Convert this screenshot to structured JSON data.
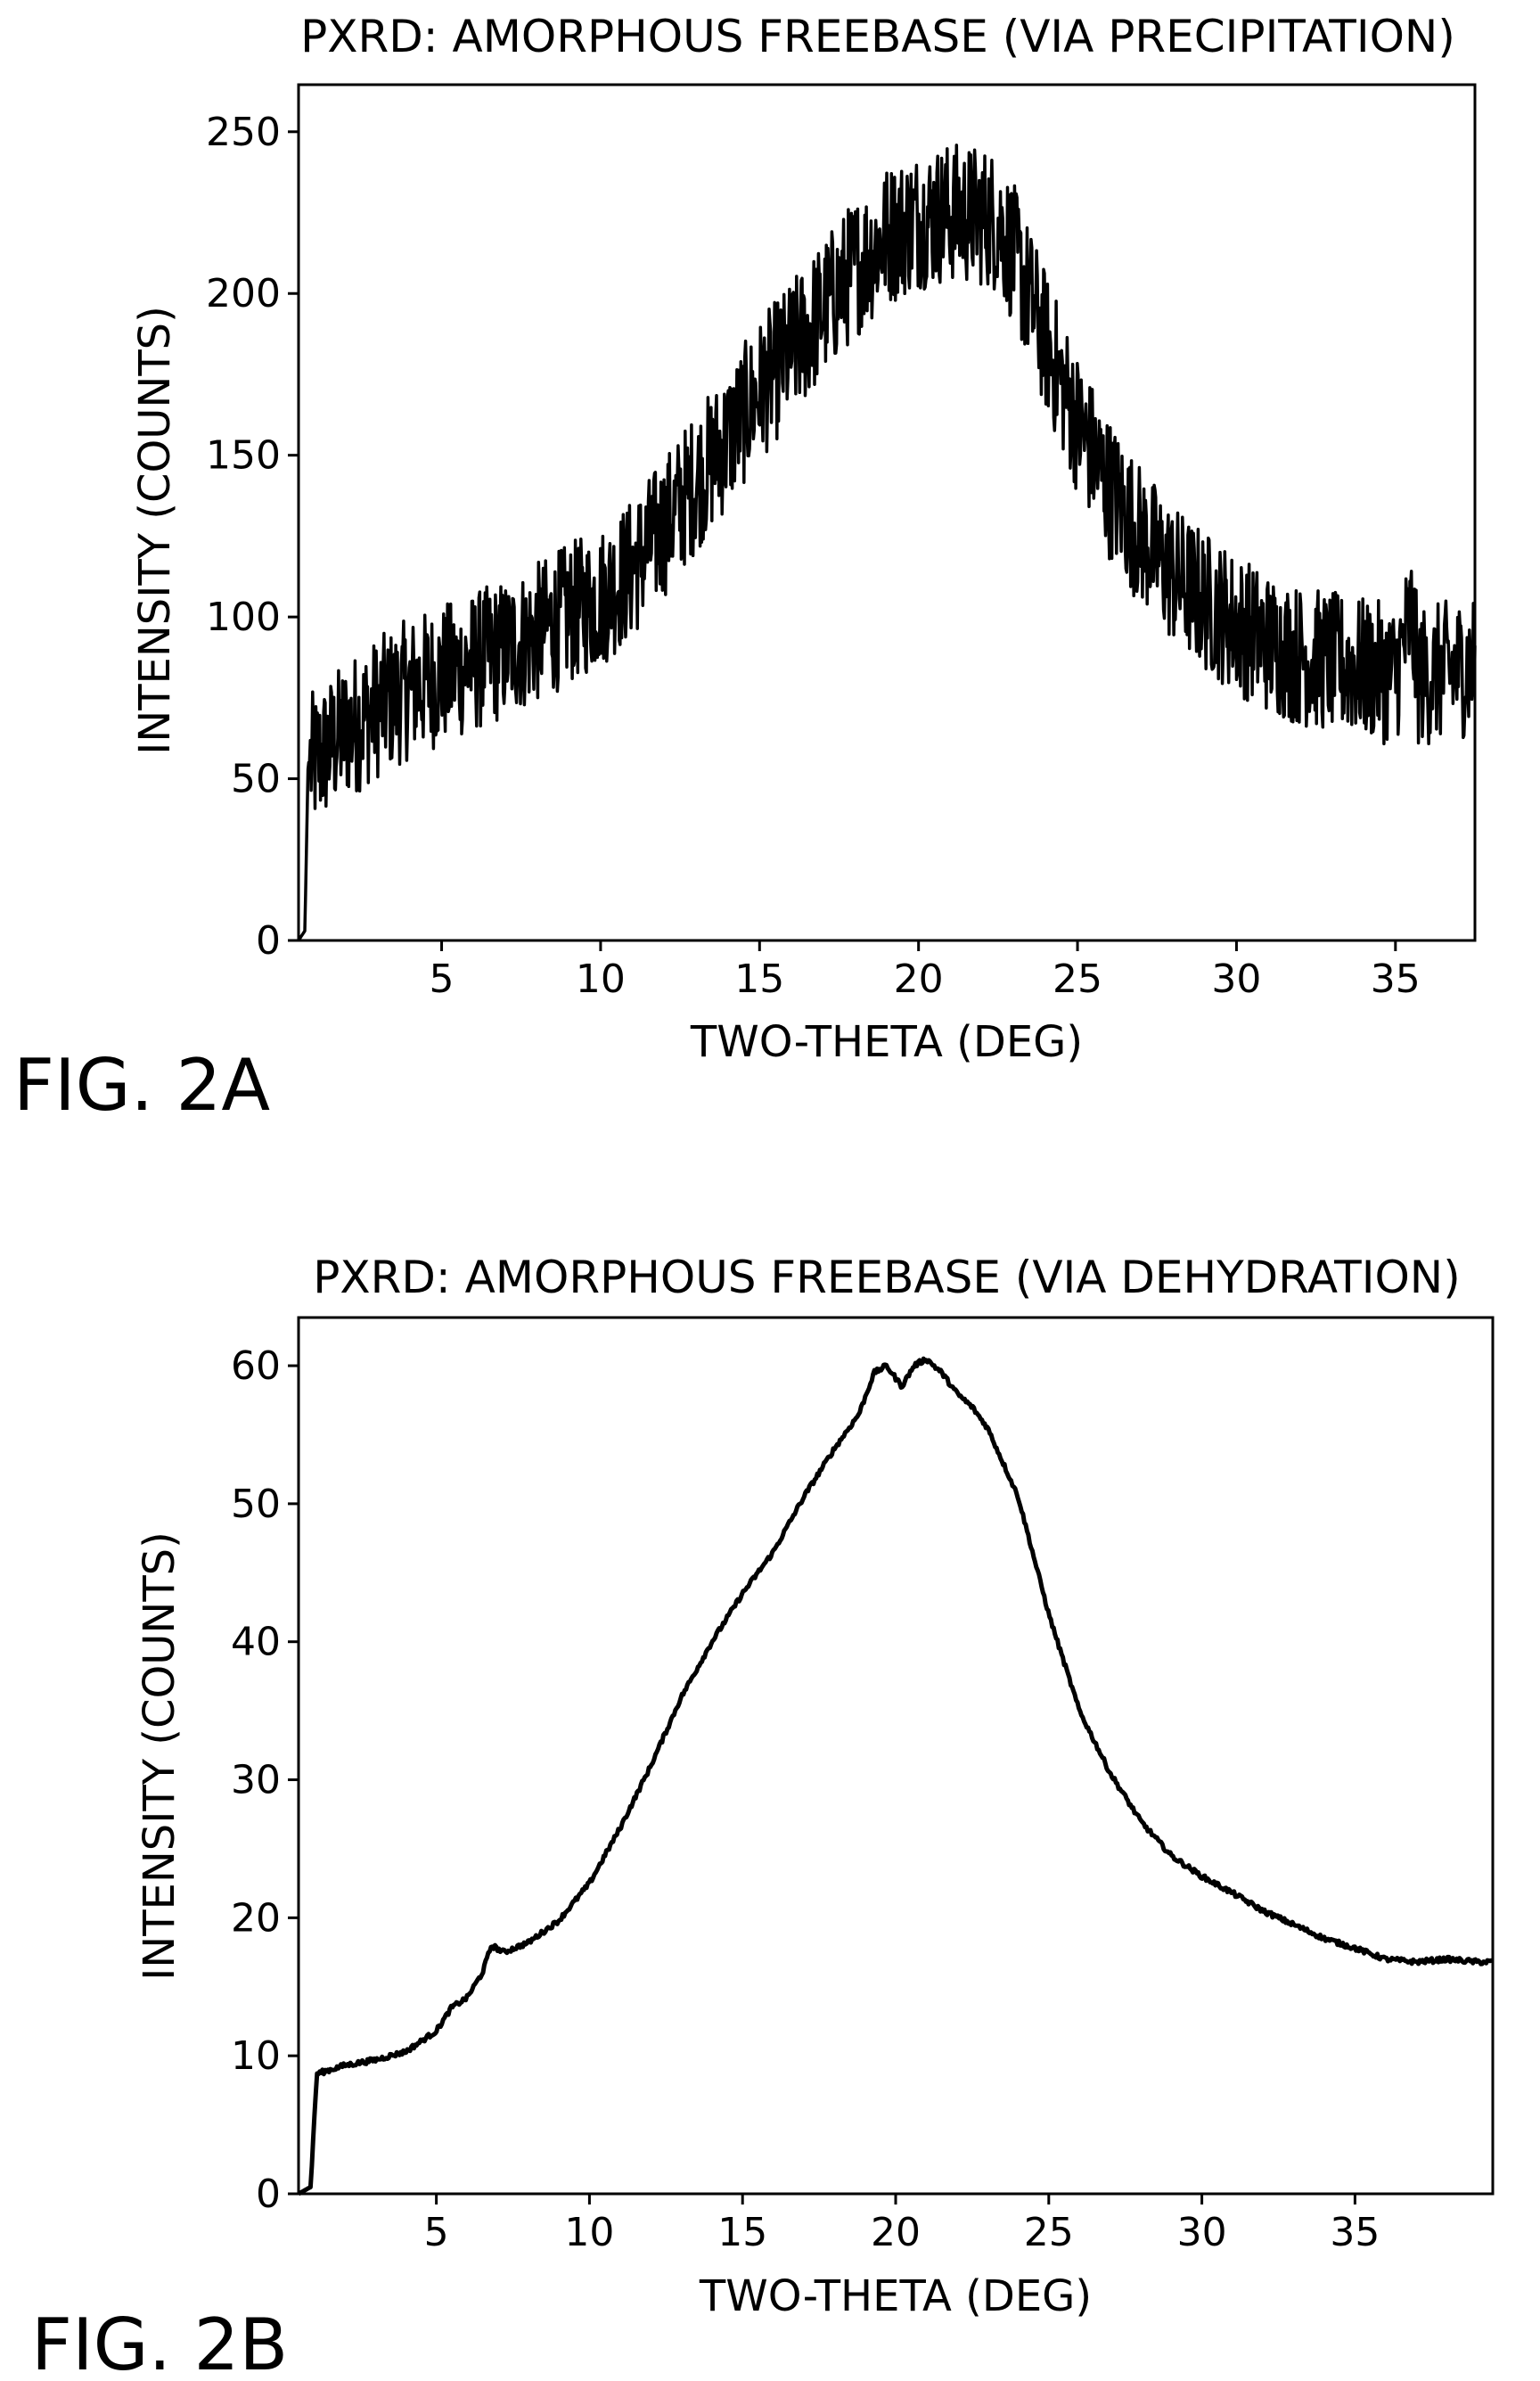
{
  "figures": [
    {
      "fig_label": "FIG. 2A",
      "chart_data": {
        "type": "line",
        "title": "PXRD: AMORPHOUS FREEBASE (VIA PRECIPITATION)",
        "xlabel": "TWO-THETA (DEG)",
        "ylabel": "INTENSITY (COUNTS)",
        "xlim": [
          0.5,
          37.5
        ],
        "ylim": [
          0,
          250
        ],
        "xticks": [
          5,
          10,
          15,
          20,
          25,
          30,
          35
        ],
        "yticks": [
          0,
          50,
          100,
          150,
          200,
          250
        ],
        "grid": false,
        "noisy": true,
        "series": [
          {
            "x": [
              0.5,
              0.7,
              0.8,
              1,
              2,
              3,
              4,
              5,
              6,
              7,
              8,
              9,
              10,
              11,
              12,
              13,
              14,
              15,
              16,
              17,
              18,
              19,
              20,
              21,
              22,
              22.5,
              23,
              24,
              25,
              26,
              27,
              28,
              29,
              30,
              31,
              32,
              33,
              34,
              35,
              35.5,
              35.7,
              36,
              37,
              37.5
            ],
            "values": [
              0,
              3,
              55,
              55,
              65,
              72,
              78,
              82,
              86,
              90,
              95,
              101,
              106,
              115,
              128,
              142,
              155,
              170,
              182,
              195,
              208,
              218,
              223,
              225,
              224,
              222,
              212,
              185,
              160,
              140,
              125,
              113,
              105,
              98,
              92,
              88,
              86,
              84,
              82,
              100,
              82,
              82,
              84,
              86
            ]
          }
        ]
      }
    },
    {
      "fig_label": "FIG. 2B",
      "chart_data": {
        "type": "line",
        "title": "PXRD: AMORPHOUS FREEBASE (VIA DEHYDRATION)",
        "xlabel": "TWO-THETA (DEG)",
        "ylabel": "INTENSITY (COUNTS)",
        "xlim": [
          0.5,
          39.5
        ],
        "ylim": [
          0,
          60
        ],
        "xticks": [
          5,
          10,
          15,
          20,
          25,
          30,
          35
        ],
        "yticks": [
          0,
          10,
          20,
          30,
          40,
          50,
          60
        ],
        "grid": false,
        "noisy": false,
        "series": [
          {
            "x": [
              0.5,
              0.9,
              1.0,
              1.1,
              2,
              3,
              4,
              5,
              5.5,
              6,
              6.5,
              6.8,
              7.2,
              8,
              9,
              10,
              11,
              12,
              13,
              14,
              15,
              16,
              17,
              18,
              18.8,
              19.3,
              19.7,
              20.2,
              20.6,
              21,
              21.5,
              22,
              22.5,
              23,
              24,
              25,
              26,
              27,
              28,
              29,
              30,
              31,
              32,
              33,
              34,
              35,
              36,
              37,
              38,
              39,
              39.5
            ],
            "values": [
              0,
              0.5,
              5,
              8.7,
              9.3,
              9.7,
              10.3,
              11.8,
              13.5,
              14.2,
              16,
              18,
              17.5,
              18.2,
              19.8,
              22.5,
              26.5,
              31,
              36,
              40,
              43.5,
              46.5,
              50.5,
              54,
              56.5,
              59.5,
              60,
              58.5,
              60,
              60.5,
              59.5,
              58,
              57,
              55.5,
              50.5,
              42,
              35,
              30.5,
              27,
              24.5,
              23,
              21.8,
              20.5,
              19.5,
              18.5,
              17.8,
              17,
              16.8,
              17,
              16.8,
              16.8
            ]
          }
        ]
      }
    }
  ]
}
